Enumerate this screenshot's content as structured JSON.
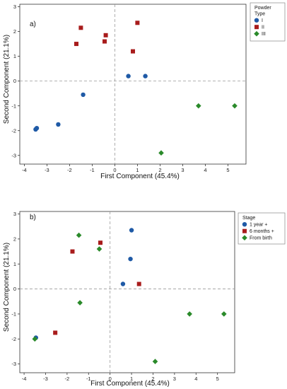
{
  "colors": {
    "blue": "#1f5aa6",
    "red": "#a81c1c",
    "green": "#2a8a2a",
    "ref_line": "#9a9a9a",
    "frame": "#333333"
  },
  "chart_data": [
    {
      "type": "scatter",
      "panel_label": "a)",
      "xlabel": "First Component (45.4%)",
      "ylabel": "Second Component (21.1%)",
      "xlim": [
        -4.2,
        5.8
      ],
      "ylim": [
        -3.35,
        3.1
      ],
      "xticks": [
        -4,
        -3,
        -2,
        -1,
        0,
        1,
        2,
        3,
        4,
        5
      ],
      "yticks": [
        -3,
        -2,
        -1,
        0,
        1,
        2,
        3
      ],
      "reference_lines": {
        "x": 0,
        "y": 0
      },
      "legend": {
        "title_lines": [
          "Powder",
          "Type"
        ],
        "placement": "right"
      },
      "series": [
        {
          "name": "I",
          "marker": "circle",
          "color": "#1f5aa6",
          "points": [
            [
              -3.5,
              -1.95
            ],
            [
              -3.45,
              -1.9
            ],
            [
              -2.5,
              -1.75
            ],
            [
              -1.4,
              -0.55
            ],
            [
              0.6,
              0.2
            ],
            [
              1.35,
              0.2
            ]
          ]
        },
        {
          "name": "II",
          "marker": "square",
          "color": "#a81c1c",
          "points": [
            [
              -1.7,
              1.5
            ],
            [
              -1.5,
              2.15
            ],
            [
              -0.45,
              1.6
            ],
            [
              -0.4,
              1.85
            ],
            [
              0.8,
              1.2
            ],
            [
              1.0,
              2.35
            ]
          ]
        },
        {
          "name": "III",
          "marker": "diamond",
          "color": "#2a8a2a",
          "points": [
            [
              2.05,
              -2.9
            ],
            [
              3.7,
              -1.0
            ],
            [
              5.3,
              -1.0
            ]
          ]
        }
      ]
    },
    {
      "type": "scatter",
      "panel_label": "b)",
      "xlabel": "First Component (45.4%)",
      "ylabel": "Second Component (21.1%)",
      "xlim": [
        -4.2,
        5.8
      ],
      "ylim": [
        -3.35,
        3.1
      ],
      "xticks": [
        -4,
        -3,
        -2,
        -1,
        0,
        1,
        2,
        3,
        4,
        5
      ],
      "yticks": [
        -3,
        -2,
        -1,
        0,
        1,
        2,
        3
      ],
      "reference_lines": {
        "x": 0,
        "y": 0
      },
      "legend": {
        "title_lines": [
          "Stage"
        ],
        "placement": "right"
      },
      "series": [
        {
          "name": "1 year +",
          "marker": "circle",
          "color": "#1f5aa6",
          "points": [
            [
              -3.45,
              -1.95
            ],
            [
              0.6,
              0.2
            ],
            [
              0.95,
              1.2
            ],
            [
              1.0,
              2.35
            ]
          ]
        },
        {
          "name": "6 months +",
          "marker": "square",
          "color": "#a81c1c",
          "points": [
            [
              -2.55,
              -1.75
            ],
            [
              -1.75,
              1.5
            ],
            [
              -0.45,
              1.85
            ],
            [
              1.35,
              0.2
            ]
          ]
        },
        {
          "name": "From birth",
          "marker": "diamond",
          "color": "#2a8a2a",
          "points": [
            [
              -3.5,
              -2.0
            ],
            [
              -1.45,
              2.15
            ],
            [
              -1.4,
              -0.55
            ],
            [
              -0.5,
              1.6
            ],
            [
              2.1,
              -2.9
            ],
            [
              3.7,
              -1.0
            ],
            [
              5.3,
              -1.0
            ]
          ]
        }
      ]
    }
  ]
}
